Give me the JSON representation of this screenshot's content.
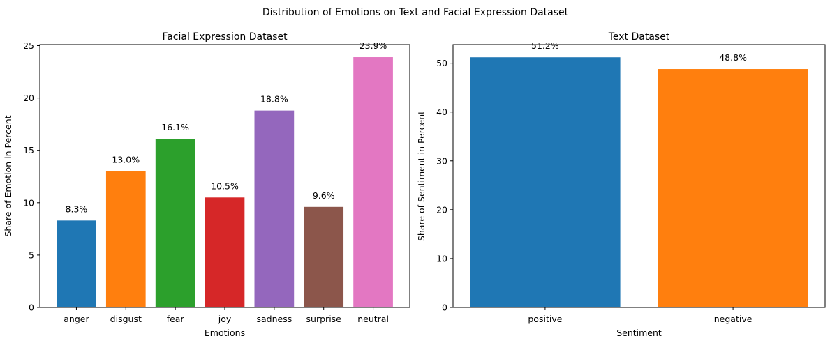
{
  "suptitle": "Distribution of Emotions on Text and Facial Expression Dataset",
  "chart_data": [
    {
      "type": "bar",
      "title": "Facial Expression Dataset",
      "xlabel": "Emotions",
      "ylabel": "Share of Emotion in Percent",
      "categories": [
        "anger",
        "disgust",
        "fear",
        "joy",
        "sadness",
        "surprise",
        "neutral"
      ],
      "values": [
        8.3,
        13.0,
        16.1,
        10.5,
        18.8,
        9.6,
        23.9
      ],
      "data_labels": [
        "8.3%",
        "13.0%",
        "16.1%",
        "10.5%",
        "18.8%",
        "9.6%",
        "23.9%"
      ],
      "colors": [
        "#1f77b4",
        "#ff7f0e",
        "#2ca02c",
        "#d62728",
        "#9467bd",
        "#8c564b",
        "#e377c2"
      ],
      "ylim": [
        0,
        25.1
      ],
      "yticks": [
        0,
        5,
        10,
        15,
        20,
        25
      ],
      "grid": false,
      "legend": "none"
    },
    {
      "type": "bar",
      "title": "Text Dataset",
      "xlabel": "Sentiment",
      "ylabel": "Share of Sentiment in Percent",
      "categories": [
        "positive",
        "negative"
      ],
      "values": [
        51.2,
        48.8
      ],
      "data_labels": [
        "51.2%",
        "48.8%"
      ],
      "colors": [
        "#1f77b4",
        "#ff7f0e"
      ],
      "ylim": [
        0,
        53.8
      ],
      "yticks": [
        0,
        10,
        20,
        30,
        40,
        50
      ],
      "grid": false,
      "legend": "none"
    }
  ]
}
